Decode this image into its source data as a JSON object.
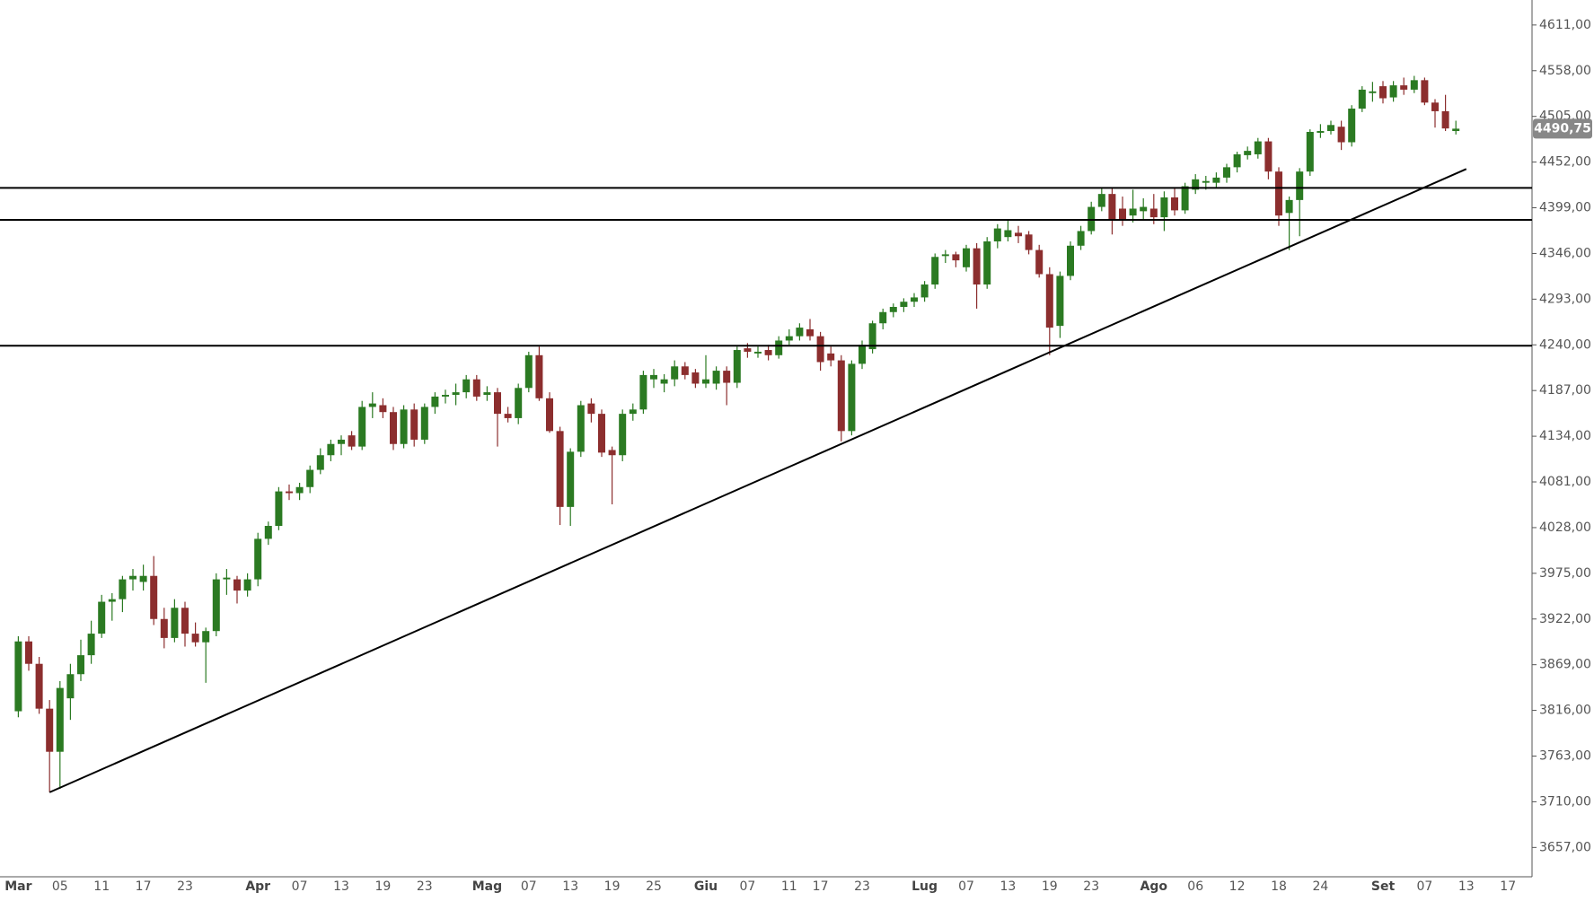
{
  "chart_data": {
    "type": "candlestick",
    "categories": [
      "Mar",
      null,
      null,
      null,
      "05",
      null,
      null,
      null,
      "11",
      null,
      null,
      null,
      "17",
      null,
      null,
      null,
      "23",
      null,
      null,
      null,
      null,
      null,
      null,
      "Apr",
      null,
      null,
      null,
      "07",
      null,
      null,
      null,
      "13",
      null,
      null,
      null,
      "19",
      null,
      null,
      null,
      "23",
      null,
      null,
      null,
      null,
      null,
      "Mag",
      null,
      null,
      null,
      "07",
      null,
      null,
      null,
      "13",
      null,
      null,
      null,
      "19",
      null,
      null,
      null,
      "25",
      null,
      null,
      null,
      null,
      "Giu",
      null,
      null,
      null,
      "07",
      null,
      null,
      null,
      "11",
      null,
      null,
      "17",
      null,
      null,
      null,
      "23",
      null,
      null,
      null,
      null,
      null,
      "Lug",
      null,
      null,
      null,
      "07",
      null,
      null,
      null,
      "13",
      null,
      null,
      null,
      "19",
      null,
      null,
      null,
      "23",
      null,
      null,
      null,
      null,
      null,
      "Ago",
      null,
      null,
      null,
      "06",
      null,
      null,
      null,
      "12",
      null,
      null,
      null,
      "18",
      null,
      null,
      null,
      "24",
      null,
      null,
      null,
      null,
      null,
      "Set",
      null,
      null,
      null,
      "07",
      null,
      null,
      null,
      "13",
      null,
      null,
      null,
      "17"
    ],
    "open": [
      3815,
      3896,
      3870,
      3818,
      3768,
      3830,
      3858,
      3880,
      3905,
      3942,
      3945,
      3968,
      3965,
      3972,
      3922,
      3900,
      3935,
      3905,
      3895,
      3908,
      3968,
      3968,
      3955,
      3968,
      4015,
      4030,
      4070,
      4068,
      4075,
      4095,
      4112,
      4125,
      4135,
      4122,
      4168,
      4170,
      4162,
      4125,
      4165,
      4130,
      4168,
      4180,
      4182,
      4185,
      4200,
      4182,
      4185,
      4160,
      4155,
      4190,
      4228,
      4178,
      4140,
      4052,
      4116,
      4172,
      4160,
      4118,
      4112,
      4160,
      4165,
      4200,
      4195,
      4200,
      4215,
      4208,
      4195,
      4195,
      4210,
      4196,
      4236,
      4230,
      4234,
      4228,
      4245,
      4250,
      4258,
      4250,
      4230,
      4222,
      4140,
      4218,
      4235,
      4265,
      4278,
      4284,
      4290,
      4295,
      4310,
      4343,
      4345,
      4330,
      4352,
      4310,
      4360,
      4365,
      4370,
      4368,
      4350,
      4322,
      4262,
      4320,
      4355,
      4372,
      4400,
      4415,
      4398,
      4390,
      4395,
      4398,
      4388,
      4411,
      4396,
      4420,
      4428,
      4428,
      4434,
      4446,
      4460,
      4461,
      4476,
      4441,
      4393,
      4408,
      4441,
      4486,
      4488,
      4493,
      4475,
      4514,
      4532,
      4540,
      4527,
      4541,
      4536,
      4547,
      4521,
      4511,
      4488,
      null,
      null,
      null,
      null,
      null
    ],
    "high": [
      3902,
      3902,
      3878,
      3828,
      3850,
      3870,
      3898,
      3920,
      3950,
      3952,
      3972,
      3980,
      3985,
      3995,
      3935,
      3945,
      3942,
      3918,
      3912,
      3975,
      3980,
      3972,
      3975,
      4022,
      4035,
      4075,
      4078,
      4080,
      4100,
      4120,
      4130,
      4135,
      4140,
      4175,
      4185,
      4178,
      4168,
      4170,
      4172,
      4172,
      4185,
      4188,
      4195,
      4205,
      4205,
      4192,
      4190,
      4168,
      4195,
      4232,
      4238,
      4185,
      4145,
      4120,
      4175,
      4178,
      4165,
      4122,
      4165,
      4172,
      4210,
      4212,
      4206,
      4222,
      4220,
      4212,
      4228,
      4215,
      4215,
      4238,
      4242,
      4238,
      4240,
      4250,
      4258,
      4265,
      4270,
      4255,
      4238,
      4228,
      4222,
      4245,
      4268,
      4282,
      4288,
      4294,
      4300,
      4314,
      4346,
      4350,
      4348,
      4356,
      4358,
      4365,
      4380,
      4384,
      4378,
      4372,
      4356,
      4330,
      4325,
      4360,
      4378,
      4406,
      4422,
      4422,
      4412,
      4420,
      4410,
      4415,
      4418,
      4422,
      4428,
      4438,
      4436,
      4440,
      4450,
      4464,
      4470,
      4480,
      4480,
      4446,
      4412,
      4445,
      4490,
      4496,
      4500,
      4500,
      4518,
      4540,
      4545,
      4546,
      4546,
      4550,
      4552,
      4550,
      4525,
      4530,
      4500,
      null,
      null,
      null,
      null,
      null
    ],
    "low": [
      3808,
      3862,
      3812,
      3721,
      3725,
      3805,
      3850,
      3870,
      3900,
      3920,
      3930,
      3955,
      3955,
      3915,
      3888,
      3895,
      3890,
      3890,
      3848,
      3902,
      3950,
      3940,
      3948,
      3960,
      4008,
      4025,
      4060,
      4060,
      4068,
      4090,
      4105,
      4112,
      4118,
      4118,
      4155,
      4155,
      4118,
      4120,
      4122,
      4125,
      4160,
      4172,
      4170,
      4178,
      4175,
      4175,
      4122,
      4150,
      4148,
      4185,
      4175,
      4138,
      4031,
      4030,
      4110,
      4150,
      4110,
      4055,
      4105,
      4152,
      4160,
      4190,
      4185,
      4192,
      4200,
      4190,
      4190,
      4188,
      4170,
      4190,
      4225,
      4225,
      4222,
      4224,
      4240,
      4245,
      4245,
      4210,
      4215,
      4128,
      4135,
      4212,
      4230,
      4258,
      4272,
      4278,
      4284,
      4290,
      4305,
      4335,
      4330,
      4325,
      4282,
      4305,
      4352,
      4360,
      4358,
      4345,
      4318,
      4228,
      4248,
      4315,
      4350,
      4368,
      4395,
      4368,
      4378,
      4382,
      4386,
      4380,
      4372,
      4390,
      4392,
      4415,
      4420,
      4422,
      4428,
      4440,
      4455,
      4456,
      4432,
      4378,
      4350,
      4366,
      4436,
      4480,
      4484,
      4466,
      4470,
      4510,
      4522,
      4520,
      4522,
      4530,
      4532,
      4518,
      4492,
      4488,
      4484,
      null,
      null,
      null,
      null,
      null
    ],
    "close": [
      3896,
      3870,
      3818,
      3768,
      3842,
      3858,
      3880,
      3905,
      3942,
      3945,
      3968,
      3972,
      3972,
      3922,
      3900,
      3935,
      3905,
      3895,
      3908,
      3968,
      3970,
      3955,
      3968,
      4015,
      4030,
      4070,
      4068,
      4075,
      4095,
      4112,
      4125,
      4130,
      4122,
      4168,
      4172,
      4162,
      4125,
      4165,
      4130,
      4168,
      4180,
      4182,
      4185,
      4200,
      4180,
      4185,
      4160,
      4155,
      4190,
      4228,
      4178,
      4140,
      4052,
      4116,
      4170,
      4160,
      4115,
      4112,
      4160,
      4165,
      4205,
      4205,
      4200,
      4215,
      4205,
      4195,
      4200,
      4210,
      4196,
      4234,
      4232,
      4232,
      4228,
      4245,
      4250,
      4260,
      4250,
      4220,
      4222,
      4140,
      4218,
      4240,
      4265,
      4278,
      4284,
      4290,
      4295,
      4310,
      4342,
      4345,
      4338,
      4352,
      4310,
      4360,
      4375,
      4373,
      4366,
      4350,
      4322,
      4260,
      4320,
      4355,
      4372,
      4400,
      4415,
      4385,
      4384,
      4398,
      4400,
      4388,
      4411,
      4396,
      4424,
      4432,
      4430,
      4434,
      4446,
      4461,
      4465,
      4476,
      4441,
      4390,
      4408,
      4441,
      4487,
      4488,
      4495,
      4475,
      4514,
      4536,
      4534,
      4526,
      4541,
      4536,
      4547,
      4521,
      4511,
      4491,
      4490.75,
      null,
      null,
      null,
      null,
      null
    ],
    "up_color": "#2b7a22",
    "down_color": "#8c2e2e",
    "ylim": [
      3623,
      4640
    ],
    "yticks": [
      {
        "value": 3657,
        "label": "3657,00"
      },
      {
        "value": 3710,
        "label": "3710,00"
      },
      {
        "value": 3763,
        "label": "3763,00"
      },
      {
        "value": 3816,
        "label": "3816,00"
      },
      {
        "value": 3869,
        "label": "3869,00"
      },
      {
        "value": 3922,
        "label": "3922,00"
      },
      {
        "value": 3975,
        "label": "3975,00"
      },
      {
        "value": 4028,
        "label": "4028,00"
      },
      {
        "value": 4081,
        "label": "4081,00"
      },
      {
        "value": 4134,
        "label": "4134,00"
      },
      {
        "value": 4187,
        "label": "4187,00"
      },
      {
        "value": 4240,
        "label": "4240,00"
      },
      {
        "value": 4293,
        "label": "4293,00"
      },
      {
        "value": 4346,
        "label": "4346,00"
      },
      {
        "value": 4399,
        "label": "4399,00"
      },
      {
        "value": 4452,
        "label": "4452,00"
      },
      {
        "value": 4505,
        "label": "4505,00"
      },
      {
        "value": 4558,
        "label": "4558,00"
      },
      {
        "value": 4611,
        "label": "4611,00"
      }
    ],
    "hlines": [
      4422,
      4385,
      4239
    ],
    "trendline": {
      "start": [
        3,
        3721
      ],
      "end": [
        139,
        4444
      ]
    },
    "price_marker": {
      "value": 4490.75,
      "label": "4490,75"
    },
    "price_marker_color": "#888888",
    "grid": false
  }
}
